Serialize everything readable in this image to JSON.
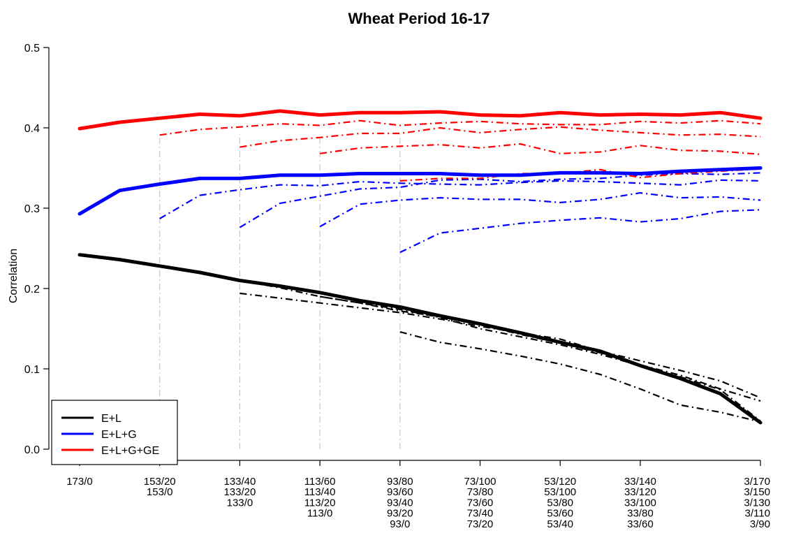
{
  "chart_data": {
    "type": "line",
    "title": "Wheat Period 16-17",
    "xlabel": "",
    "ylabel": "Correlation",
    "ylim": [
      0,
      0.5
    ],
    "y_ticks": [
      "0.0",
      "0.1",
      "0.2",
      "0.3",
      "0.4",
      "0.5"
    ],
    "x": [
      0,
      1,
      2,
      3,
      4,
      5,
      6,
      7,
      8,
      9,
      10,
      11,
      12,
      13,
      14,
      15,
      16
    ],
    "x_tick_positions": [
      0,
      2,
      4,
      6,
      8,
      10,
      12,
      14,
      17
    ],
    "x_tick_labels": [
      [
        "173/0"
      ],
      [
        "153/20",
        "153/0"
      ],
      [
        "133/40",
        "133/20",
        "133/0"
      ],
      [
        "113/60",
        "113/40",
        "113/20",
        "113/0"
      ],
      [
        "93/80",
        "93/60",
        "93/40",
        "93/20",
        "93/0"
      ],
      [
        "73/100",
        "73/80",
        "73/60",
        "73/40",
        "73/20"
      ],
      [
        "53/120",
        "53/100",
        "53/80",
        "53/60",
        "53/40"
      ],
      [
        "33/140",
        "33/120",
        "33/100",
        "33/80",
        "33/60"
      ],
      [
        "3/170",
        "3/150",
        "3/130",
        "3/110",
        "3/90"
      ]
    ],
    "vertical_reference_lines": [
      2,
      4,
      6,
      8
    ],
    "legend": {
      "position": "bottom-left",
      "entries": [
        {
          "label": "E+L",
          "color": "#000000"
        },
        {
          "label": "E+L+G",
          "color": "#0000ff"
        },
        {
          "label": "E+L+G+GE",
          "color": "#ff0000"
        }
      ]
    },
    "series": [
      {
        "color": "#000000",
        "style": "solid",
        "x": [
          0,
          1,
          2,
          3,
          4,
          5,
          6,
          7,
          8,
          9,
          10,
          11,
          12,
          13,
          14,
          15,
          16,
          17
        ],
        "values": [
          0.242,
          0.236,
          0.228,
          0.22,
          0.21,
          0.203,
          0.195,
          0.185,
          0.177,
          0.166,
          0.156,
          0.145,
          0.133,
          0.122,
          0.104,
          0.088,
          0.069,
          0.033
        ]
      },
      {
        "color": "#000000",
        "style": "dashdot",
        "x": [
          2,
          3,
          4,
          5,
          6,
          7,
          8,
          9,
          10,
          11,
          12,
          13,
          14,
          15,
          16,
          17
        ],
        "values": [
          0.227,
          0.22,
          0.21,
          0.201,
          0.19,
          0.182,
          0.172,
          0.165,
          0.155,
          0.143,
          0.132,
          0.12,
          0.105,
          0.092,
          0.075,
          0.06
        ]
      },
      {
        "color": "#000000",
        "style": "dashdot",
        "x": [
          4,
          5,
          6,
          7,
          8,
          9,
          10,
          11,
          12,
          13,
          14,
          15,
          16,
          17
        ],
        "values": [
          0.194,
          0.188,
          0.182,
          0.176,
          0.17,
          0.162,
          0.153,
          0.145,
          0.137,
          0.122,
          0.11,
          0.098,
          0.085,
          0.064
        ]
      },
      {
        "color": "#000000",
        "style": "dashdot",
        "x": [
          6,
          7,
          8,
          9,
          10,
          11,
          12,
          13,
          14,
          15,
          16,
          17
        ],
        "values": [
          0.19,
          0.182,
          0.174,
          0.164,
          0.15,
          0.14,
          0.13,
          0.118,
          0.104,
          0.09,
          0.074,
          0.035
        ]
      },
      {
        "color": "#000000",
        "style": "dashdot",
        "x": [
          8,
          9,
          10,
          11,
          12,
          13,
          14,
          15,
          16,
          17
        ],
        "values": [
          0.146,
          0.133,
          0.125,
          0.116,
          0.106,
          0.093,
          0.075,
          0.055,
          0.046,
          0.034
        ]
      },
      {
        "color": "#0000ff",
        "style": "solid",
        "x": [
          0,
          1,
          2,
          3,
          4,
          5,
          6,
          7,
          8,
          9,
          10,
          11,
          12,
          13,
          14,
          15,
          16,
          17
        ],
        "values": [
          0.293,
          0.322,
          0.33,
          0.337,
          0.337,
          0.341,
          0.341,
          0.343,
          0.343,
          0.343,
          0.341,
          0.341,
          0.344,
          0.344,
          0.343,
          0.346,
          0.348,
          0.35
        ]
      },
      {
        "color": "#0000ff",
        "style": "dashdot",
        "x": [
          2,
          3,
          4,
          5,
          6,
          7,
          8,
          9,
          10,
          11,
          12,
          13,
          14,
          15,
          16,
          17
        ],
        "values": [
          0.287,
          0.316,
          0.323,
          0.329,
          0.328,
          0.333,
          0.331,
          0.33,
          0.329,
          0.332,
          0.334,
          0.333,
          0.331,
          0.329,
          0.335,
          0.334
        ]
      },
      {
        "color": "#0000ff",
        "style": "dashdot",
        "x": [
          4,
          5,
          6,
          7,
          8,
          9,
          10,
          11,
          12,
          13,
          14,
          15,
          16,
          17
        ],
        "values": [
          0.276,
          0.306,
          0.315,
          0.324,
          0.326,
          0.335,
          0.336,
          0.333,
          0.336,
          0.337,
          0.341,
          0.343,
          0.342,
          0.344
        ]
      },
      {
        "color": "#0000ff",
        "style": "dashdot",
        "x": [
          6,
          7,
          8,
          9,
          10,
          11,
          12,
          13,
          14,
          15,
          16,
          17
        ],
        "values": [
          0.277,
          0.305,
          0.31,
          0.313,
          0.311,
          0.311,
          0.307,
          0.311,
          0.319,
          0.313,
          0.314,
          0.31
        ]
      },
      {
        "color": "#0000ff",
        "style": "dashdot",
        "x": [
          8,
          9,
          10,
          11,
          12,
          13,
          14,
          15,
          16,
          17
        ],
        "values": [
          0.245,
          0.269,
          0.275,
          0.281,
          0.285,
          0.288,
          0.283,
          0.287,
          0.296,
          0.298
        ]
      },
      {
        "color": "#ff0000",
        "style": "solid",
        "x": [
          0,
          1,
          2,
          3,
          4,
          5,
          6,
          7,
          8,
          9,
          10,
          11,
          12,
          13,
          14,
          15,
          16,
          17
        ],
        "values": [
          0.399,
          0.407,
          0.412,
          0.417,
          0.415,
          0.421,
          0.416,
          0.419,
          0.419,
          0.42,
          0.416,
          0.415,
          0.419,
          0.416,
          0.417,
          0.416,
          0.419,
          0.412
        ]
      },
      {
        "color": "#ff0000",
        "style": "dashdot",
        "x": [
          2,
          3,
          4,
          5,
          6,
          7,
          8,
          9,
          10,
          11,
          12,
          13,
          14,
          15,
          16,
          17
        ],
        "values": [
          0.391,
          0.398,
          0.401,
          0.405,
          0.403,
          0.409,
          0.403,
          0.406,
          0.408,
          0.405,
          0.404,
          0.404,
          0.408,
          0.406,
          0.409,
          0.405
        ]
      },
      {
        "color": "#ff0000",
        "style": "dashdot",
        "x": [
          4,
          5,
          6,
          7,
          8,
          9,
          10,
          11,
          12,
          13,
          14,
          15,
          16,
          17
        ],
        "values": [
          0.376,
          0.384,
          0.388,
          0.393,
          0.393,
          0.4,
          0.394,
          0.398,
          0.401,
          0.397,
          0.394,
          0.391,
          0.392,
          0.389
        ]
      },
      {
        "color": "#ff0000",
        "style": "dashdot",
        "x": [
          6,
          7,
          8,
          9,
          10,
          11,
          12,
          13,
          14,
          15,
          16,
          17
        ],
        "values": [
          0.368,
          0.375,
          0.377,
          0.379,
          0.375,
          0.38,
          0.368,
          0.37,
          0.378,
          0.372,
          0.371,
          0.367
        ]
      },
      {
        "color": "#ff0000",
        "style": "dashdot",
        "x": [
          8,
          9,
          10,
          11,
          12,
          13,
          14,
          15,
          16,
          17
        ],
        "values": [
          0.334,
          0.337,
          0.337,
          0.343,
          0.343,
          0.348,
          0.338,
          0.343,
          0.346,
          0.349
        ]
      }
    ]
  }
}
